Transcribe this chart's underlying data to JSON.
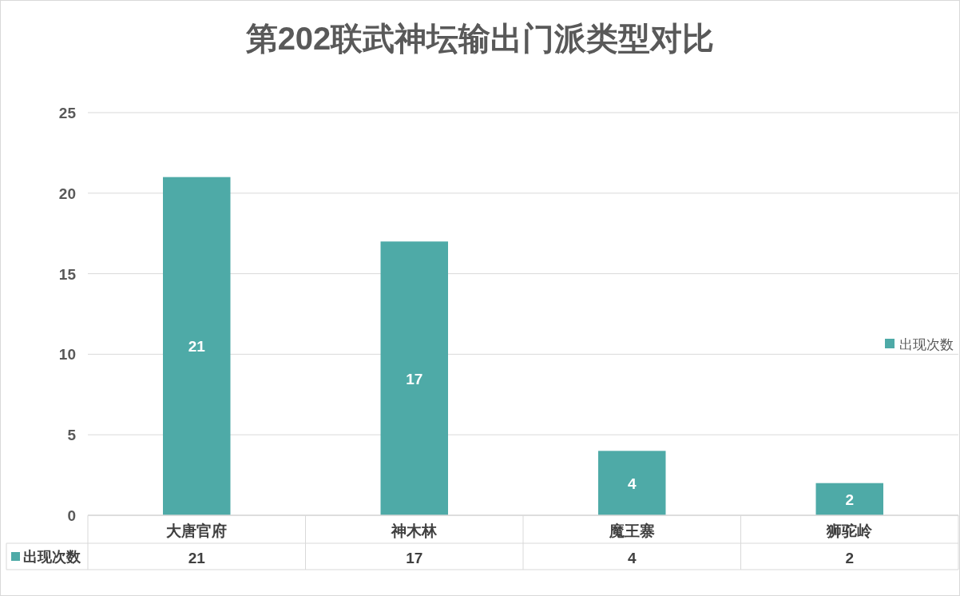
{
  "chart_data": {
    "type": "bar",
    "title": "第202联武神坛输出门派类型对比",
    "categories": [
      "大唐官府",
      "神木林",
      "魔王寨",
      "狮驼岭"
    ],
    "series": [
      {
        "name": "出现次数",
        "color": "#4eaaa7",
        "values": [
          21,
          17,
          4,
          2
        ],
        "value_labels": [
          "21",
          "17",
          "4",
          "2"
        ]
      }
    ],
    "ylim": [
      0,
      25
    ],
    "yticks": [
      0,
      5,
      10,
      15,
      20,
      25
    ],
    "annotations": [
      "21",
      "17",
      "4",
      "2"
    ],
    "grid": "y",
    "legend": "right",
    "data_labels": true
  }
}
